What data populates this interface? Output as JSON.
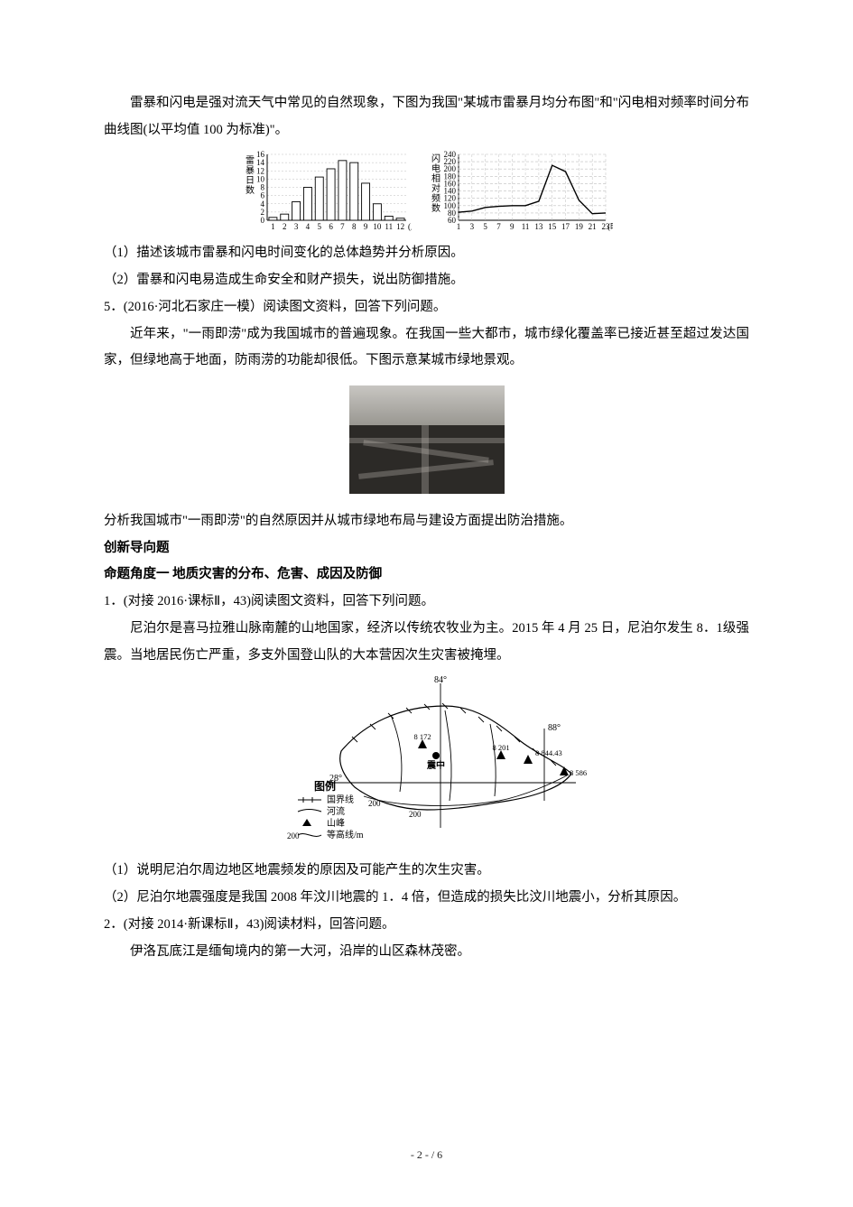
{
  "intro_para": "雷暴和闪电是强对流天气中常见的自然现象，下图为我国\"某城市雷暴月均分布图\"和\"闪电相对频率时间分布曲线图(以平均值 100 为标准)\"。",
  "bar_chart": {
    "type": "bar",
    "ylabel_lines": [
      "雷",
      "暴",
      "日",
      "数"
    ],
    "xlabel_suffix": "(月)",
    "categories": [
      "1",
      "2",
      "3",
      "4",
      "5",
      "6",
      "7",
      "8",
      "9",
      "10",
      "11",
      "12"
    ],
    "values": [
      0.7,
      1.5,
      4.5,
      8,
      10.5,
      12.5,
      14.5,
      14,
      9,
      4,
      1,
      0.5
    ],
    "ylim": [
      0,
      16
    ],
    "ytick_step": 2,
    "bar_color": "#ffffff",
    "bar_stroke": "#000000",
    "grid_color": "#bfbfbf",
    "background_color": "#ffffff",
    "bar_width": 0.7,
    "axis_fontsize": 9
  },
  "line_chart": {
    "type": "line",
    "ylabel_lines": [
      "闪",
      "电",
      "相",
      "对",
      "频",
      "数"
    ],
    "xlabel_suffix": "(时)",
    "x_ticks": [
      "1",
      "3",
      "5",
      "7",
      "9",
      "11",
      "13",
      "15",
      "17",
      "19",
      "21",
      "23"
    ],
    "x_values": [
      1,
      3,
      5,
      7,
      9,
      11,
      13,
      15,
      17,
      19,
      21,
      23
    ],
    "y_values": [
      82,
      85,
      95,
      98,
      100,
      100,
      112,
      210,
      193,
      115,
      78,
      80
    ],
    "ylim": [
      60,
      240
    ],
    "ytick_step": 20,
    "line_color": "#000000",
    "grid_color": "#bfbfbf",
    "grid_dash": "3,2",
    "background_color": "#ffffff",
    "marker": "none",
    "line_width": 1.4,
    "axis_fontsize": 9
  },
  "q1": "（1）描述该城市雷暴和闪电时间变化的总体趋势并分析原因。",
  "q2": "（2）雷暴和闪电易造成生命安全和财产损失，说出防御措施。",
  "item5": "5．(2016·河北石家庄一模）阅读图文资料，回答下列问题。",
  "item5_para1": "近年来，\"一雨即涝\"成为我国城市的普遍现象。在我国一些大都市，城市绿化覆盖率已接近甚至超过发达国家，但绿地高于地面，防雨涝的功能却很低。下图示意某城市绿地景观。",
  "item5_q": "分析我国城市\"一雨即涝\"的自然原因并从城市绿地布局与建设方面提出防治措施。",
  "section_heading1": "创新导向题",
  "section_heading2": "命题角度一  地质灾害的分布、危害、成因及防御",
  "new_item1": "1．(对接 2016·课标Ⅱ，43)阅读图文资料，回答下列问题。",
  "new_item1_para": "尼泊尔是喜马拉雅山脉南麓的山地国家，经济以传统农牧业为主。2015 年 4 月 25 日，尼泊尔发生 8．1级强震。当地居民伤亡严重，多支外国登山队的大本营因次生灾害被掩埋。",
  "map": {
    "type": "map",
    "lon_labels": {
      "84": "84°",
      "88": "88°"
    },
    "lat_label": "28°",
    "legend_title": "图例",
    "legend_items": [
      {
        "symbol": "boundary",
        "label": "国界线"
      },
      {
        "symbol": "river",
        "label": "河流"
      },
      {
        "symbol": "peak",
        "label": "山峰"
      },
      {
        "symbol": "contour",
        "label": "等高线/m",
        "value": "200"
      }
    ],
    "epicenter_label": "震中",
    "peak_labels": [
      "8 172",
      "8 201",
      "8 844.43",
      "8 586"
    ],
    "contour_value": "200",
    "stroke_color": "#000000",
    "river_color": "#000000",
    "fill_color": "#ffffff",
    "axis_fontsize": 10
  },
  "new_item1_q1": "（1）说明尼泊尔周边地区地震频发的原因及可能产生的次生灾害。",
  "new_item1_q2": "（2）尼泊尔地震强度是我国 2008 年汶川地震的 1．4 倍，但造成的损失比汶川地震小，分析其原因。",
  "new_item2": "2．(对接 2014·新课标Ⅱ，43)阅读材料，回答问题。",
  "new_item2_para": "伊洛瓦底江是缅甸境内的第一大河，沿岸的山区森林茂密。",
  "footer": {
    "page_current": "2",
    "page_total": "6",
    "sep1": " - ",
    "sep2": " - / "
  },
  "colors": {
    "text": "#000000",
    "background": "#ffffff"
  }
}
